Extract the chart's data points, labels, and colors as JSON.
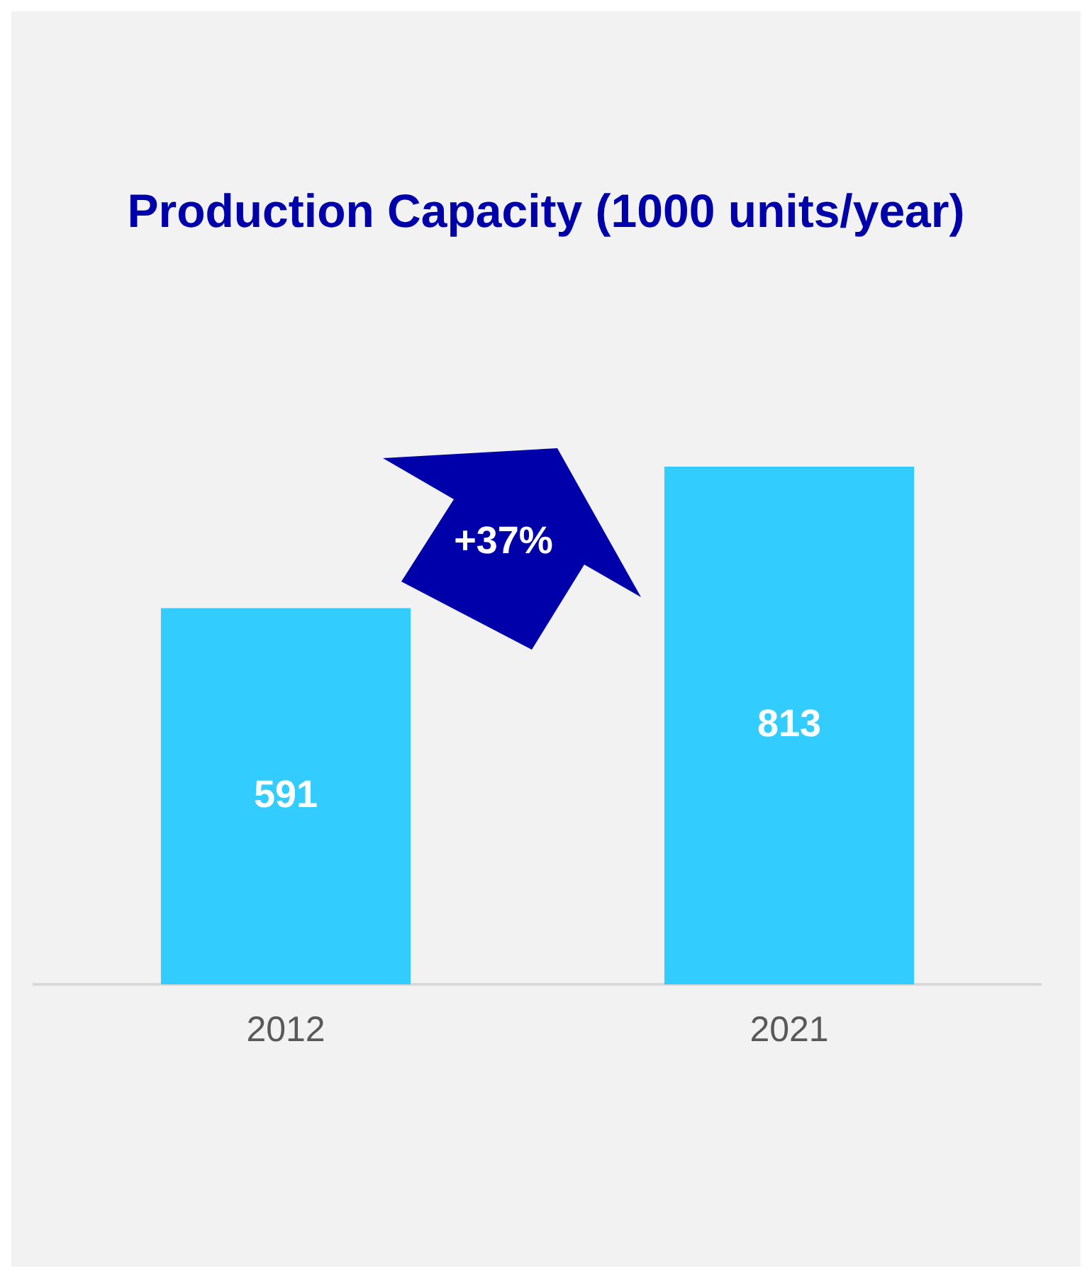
{
  "chart_data": {
    "type": "bar",
    "title": "Production Capacity (1000 units/year)",
    "categories": [
      "2012",
      "2021"
    ],
    "values": [
      591,
      813
    ],
    "color": "#33ccff",
    "data_labels": true,
    "grid": false,
    "legend": false,
    "annotations": [
      "+37%"
    ]
  }
}
